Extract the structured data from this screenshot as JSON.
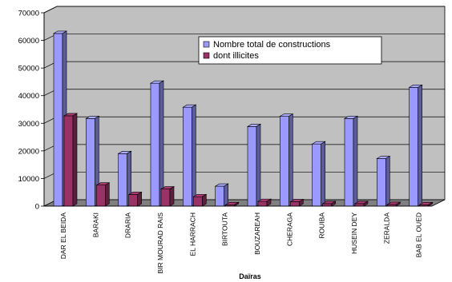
{
  "chart_data": {
    "type": "bar",
    "categories": [
      "DAR EL BEIDA",
      "BARAKI",
      "DRARIA",
      "BIR MOURAD RAIS",
      "EL HARRACH",
      "BIRTOUTA",
      "BOUZAREAH",
      "CHERAGA",
      "ROUIBA",
      "HUSEIN DEY",
      "ZERALDA",
      "BAB EL OUED"
    ],
    "series": [
      {
        "name": "Nombre total de constructions",
        "color": "#9999ff",
        "values": [
          62500,
          31700,
          19000,
          44500,
          35800,
          7200,
          28800,
          32500,
          22500,
          31700,
          17200,
          43000
        ]
      },
      {
        "name": "dont illicites",
        "color": "#993366",
        "values": [
          32700,
          7600,
          4200,
          6200,
          3400,
          500,
          1700,
          1600,
          900,
          900,
          600,
          500
        ]
      }
    ],
    "y_ticks": [
      "0",
      "10000",
      "20000",
      "30000",
      "40000",
      "50000",
      "60000",
      "70000"
    ],
    "xlabel": "Daïras",
    "ylabel": "",
    "ylim": [
      0,
      70000
    ],
    "grid": true,
    "legend_position": "top-right",
    "style": "3d-columns"
  }
}
